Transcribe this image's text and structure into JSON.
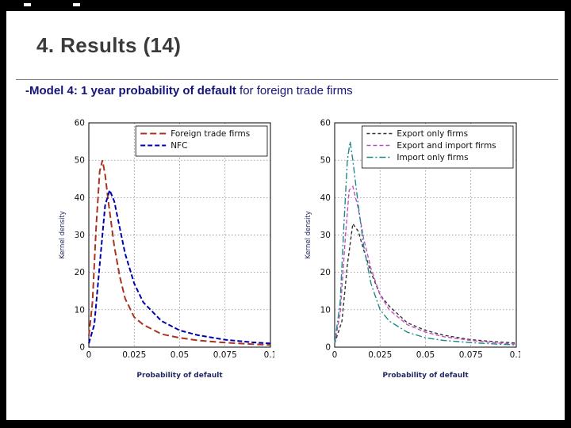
{
  "slide": {
    "title": "4. Results (14)",
    "subtitle_bold": "-Model 4: 1 year probability of default",
    "subtitle_rest": " for foreign trade firms"
  },
  "chart_data": [
    {
      "type": "line",
      "title": "",
      "xlabel": "Probability of default",
      "ylabel": "Kernel density",
      "xlim": [
        0,
        0.1
      ],
      "ylim": [
        0,
        60
      ],
      "xticks": [
        0,
        0.025,
        0.05,
        0.075,
        0.1
      ],
      "xtick_labels": [
        "0",
        "0.025",
        "0.05",
        "0.075",
        "0.1"
      ],
      "yticks": [
        0,
        10,
        20,
        30,
        40,
        50,
        60
      ],
      "grid": true,
      "grid_style": "dotted",
      "legend_position": "top-right",
      "series": [
        {
          "name": "Foreign trade firms",
          "color": "#a8341f",
          "dash": "8,4",
          "width": 2,
          "x": [
            0,
            0.002,
            0.004,
            0.006,
            0.0075,
            0.009,
            0.011,
            0.014,
            0.017,
            0.02,
            0.025,
            0.03,
            0.04,
            0.05,
            0.06,
            0.075,
            0.09,
            0.1
          ],
          "y": [
            3,
            12,
            32,
            47,
            50,
            46,
            38,
            27,
            19,
            13,
            8,
            6,
            3.5,
            2.5,
            1.8,
            1.2,
            0.8,
            0.6
          ]
        },
        {
          "name": "NFC",
          "color": "#0000b0",
          "dash": "6,3",
          "width": 2,
          "x": [
            0,
            0.003,
            0.006,
            0.009,
            0.0115,
            0.014,
            0.017,
            0.02,
            0.025,
            0.03,
            0.04,
            0.05,
            0.06,
            0.075,
            0.09,
            0.1
          ],
          "y": [
            1,
            6,
            22,
            38,
            42,
            39,
            32,
            25,
            17,
            12,
            7,
            4.5,
            3.2,
            2,
            1.3,
            1
          ]
        }
      ]
    },
    {
      "type": "line",
      "title": "",
      "xlabel": "Probability of default",
      "ylabel": "Kernel density",
      "xlim": [
        0,
        0.1
      ],
      "ylim": [
        0,
        60
      ],
      "xticks": [
        0,
        0.025,
        0.05,
        0.075,
        0.1
      ],
      "xtick_labels": [
        "0",
        "0.025",
        "0.05",
        "0.075",
        "0.1"
      ],
      "yticks": [
        0,
        10,
        20,
        30,
        40,
        50,
        60
      ],
      "grid": true,
      "grid_style": "dotted",
      "legend_position": "top-right",
      "series": [
        {
          "name": "Export only firms",
          "color": "#333333",
          "dash": "4,3",
          "width": 1.4,
          "x": [
            0,
            0.004,
            0.007,
            0.01,
            0.013,
            0.016,
            0.02,
            0.025,
            0.03,
            0.04,
            0.05,
            0.06,
            0.075,
            0.09,
            0.1
          ],
          "y": [
            1,
            7,
            22,
            33,
            31,
            26,
            20,
            14,
            11,
            6.5,
            4.5,
            3.2,
            2,
            1.4,
            1.1
          ]
        },
        {
          "name": "Export and import firms",
          "color": "#c050c0",
          "dash": "5,3",
          "width": 1.4,
          "x": [
            0,
            0.003,
            0.006,
            0.008,
            0.01,
            0.013,
            0.016,
            0.02,
            0.025,
            0.03,
            0.04,
            0.05,
            0.06,
            0.075,
            0.09,
            0.1
          ],
          "y": [
            1,
            9,
            30,
            42,
            43,
            37,
            29,
            21,
            14,
            10,
            6,
            4,
            2.8,
            1.8,
            1.1,
            0.8
          ]
        },
        {
          "name": "Import only firms",
          "color": "#1f8a8a",
          "dash": "8,3,2,3",
          "width": 1.4,
          "x": [
            0,
            0.003,
            0.005,
            0.007,
            0.0085,
            0.01,
            0.013,
            0.016,
            0.02,
            0.025,
            0.03,
            0.04,
            0.05,
            0.06,
            0.075,
            0.09,
            0.1
          ],
          "y": [
            1,
            12,
            32,
            50,
            55,
            50,
            38,
            27,
            17,
            10,
            7,
            4,
            2.5,
            1.8,
            1.2,
            0.8,
            0.6
          ]
        }
      ]
    }
  ]
}
